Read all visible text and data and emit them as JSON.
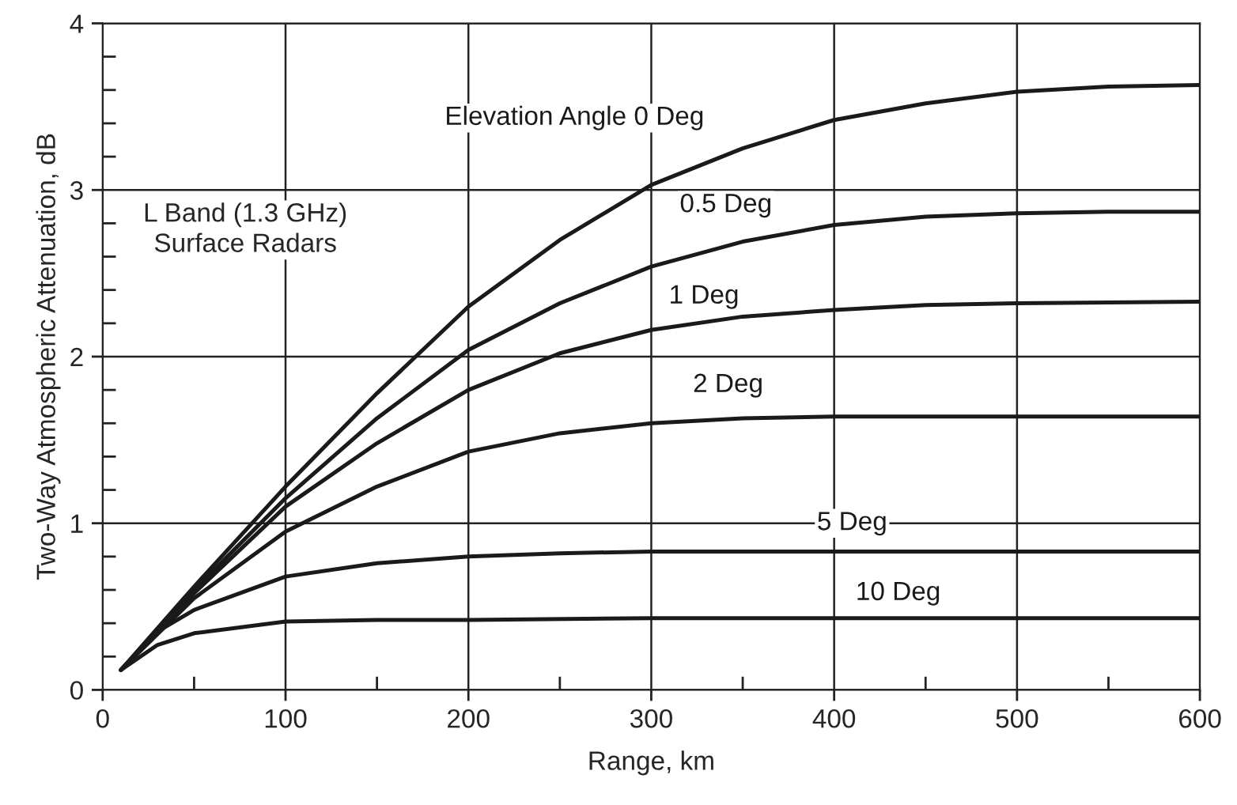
{
  "chart_data": {
    "type": "line",
    "xlabel": "Range, km",
    "ylabel": "Two-Way Atmospheric Attenuation, dB",
    "xlim": [
      0,
      600
    ],
    "ylim": [
      0,
      4
    ],
    "xticks": [
      0,
      {
        "value": 50,
        "label": null
      },
      100,
      {
        "value": 150,
        "label": null
      },
      200,
      {
        "value": 250,
        "label": null
      },
      300,
      {
        "value": 350,
        "label": null
      },
      400,
      {
        "value": 450,
        "label": null
      },
      500,
      {
        "value": 550,
        "label": null
      },
      600
    ],
    "yticks": [
      0,
      {
        "value": 0.2,
        "label": null
      },
      {
        "value": 0.4,
        "label": null
      },
      {
        "value": 0.6,
        "label": null
      },
      {
        "value": 0.8,
        "label": null
      },
      1,
      {
        "value": 1.2,
        "label": null
      },
      {
        "value": 1.4,
        "label": null
      },
      {
        "value": 1.6,
        "label": null
      },
      {
        "value": 1.8,
        "label": null
      },
      2,
      {
        "value": 2.2,
        "label": null
      },
      {
        "value": 2.4,
        "label": null
      },
      {
        "value": 2.6,
        "label": null
      },
      {
        "value": 2.8,
        "label": null
      },
      3,
      {
        "value": 3.2,
        "label": null
      },
      {
        "value": 3.4,
        "label": null
      },
      {
        "value": 3.6,
        "label": null
      },
      {
        "value": 3.8,
        "label": null
      },
      4
    ],
    "grid": true,
    "marker": "none",
    "line_style": "solid",
    "series": [
      {
        "name": "Elevation Angle 0 Deg",
        "color": "#1a1a1a",
        "x": [
          10,
          50,
          100,
          150,
          200,
          250,
          300,
          350,
          400,
          450,
          500,
          550,
          600
        ],
        "values": [
          0.12,
          0.62,
          1.22,
          1.78,
          2.3,
          2.7,
          3.03,
          3.25,
          3.42,
          3.52,
          3.59,
          3.62,
          3.63
        ]
      },
      {
        "name": "0.5 Deg",
        "color": "#1a1a1a",
        "x": [
          10,
          50,
          100,
          150,
          200,
          250,
          300,
          350,
          400,
          450,
          500,
          550,
          600
        ],
        "values": [
          0.12,
          0.6,
          1.15,
          1.63,
          2.04,
          2.32,
          2.54,
          2.69,
          2.79,
          2.84,
          2.86,
          2.87,
          2.87
        ]
      },
      {
        "name": "1 Deg",
        "color": "#1a1a1a",
        "x": [
          10,
          50,
          100,
          150,
          200,
          250,
          300,
          350,
          400,
          450,
          500,
          600
        ],
        "values": [
          0.12,
          0.58,
          1.1,
          1.48,
          1.8,
          2.02,
          2.16,
          2.24,
          2.28,
          2.31,
          2.32,
          2.33
        ]
      },
      {
        "name": "2 Deg",
        "color": "#1a1a1a",
        "x": [
          10,
          50,
          100,
          150,
          200,
          250,
          300,
          350,
          400,
          500,
          600
        ],
        "values": [
          0.12,
          0.55,
          0.95,
          1.22,
          1.43,
          1.54,
          1.6,
          1.63,
          1.64,
          1.64,
          1.64
        ]
      },
      {
        "name": "5 Deg",
        "color": "#1a1a1a",
        "x": [
          10,
          30,
          50,
          100,
          150,
          200,
          250,
          300,
          400,
          600
        ],
        "values": [
          0.12,
          0.35,
          0.48,
          0.68,
          0.76,
          0.8,
          0.82,
          0.83,
          0.83,
          0.83
        ]
      },
      {
        "name": "10 Deg",
        "color": "#1a1a1a",
        "x": [
          10,
          30,
          50,
          100,
          150,
          200,
          300,
          600
        ],
        "values": [
          0.12,
          0.27,
          0.34,
          0.41,
          0.42,
          0.42,
          0.43,
          0.43
        ]
      }
    ],
    "annotations": [
      "L Band (1.3 GHz)\nSurface Radars"
    ]
  }
}
